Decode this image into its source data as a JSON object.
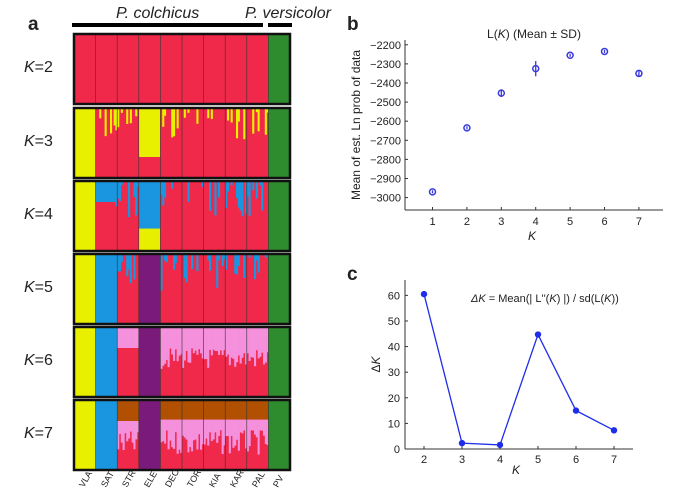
{
  "panel_a": {
    "label": "a",
    "species_left": "P. colchicus",
    "species_right": "P. versicolor",
    "populations": [
      "VLA",
      "SAT",
      "STR",
      "ELE",
      "DEC",
      "TOR",
      "KIA",
      "KAR",
      "PAL",
      "PV"
    ],
    "k_rows": [
      {
        "label": "K=2",
        "K": 2
      },
      {
        "label": "K=3",
        "K": 3
      },
      {
        "label": "K=4",
        "K": 4
      },
      {
        "label": "K=5",
        "K": 5
      },
      {
        "label": "K=6",
        "K": 6
      },
      {
        "label": "K=7",
        "K": 7
      }
    ],
    "cluster_colors": {
      "red": "#f0284a",
      "green": "#2e8b2e",
      "yellow": "#e8f000",
      "blue": "#1a96e0",
      "purple": "#7a1a7a",
      "pink": "#f490dc",
      "brown": "#b05000"
    },
    "dominant_cluster": {
      "K2": [
        "red",
        "red",
        "red",
        "red",
        "red",
        "red",
        "red",
        "red",
        "red",
        "green"
      ],
      "K3": [
        "yellow",
        "red",
        "red",
        "yellow",
        "red",
        "red",
        "red",
        "red",
        "red",
        "green"
      ],
      "K4": [
        "yellow",
        "red",
        "red",
        "blue",
        "red",
        "red",
        "red",
        "red",
        "red",
        "green"
      ],
      "K5": [
        "yellow",
        "blue",
        "red",
        "purple",
        "red",
        "red",
        "red",
        "red",
        "red",
        "green"
      ],
      "K6": [
        "yellow",
        "blue",
        "red",
        "purple",
        "red",
        "red",
        "red",
        "red",
        "red",
        "green"
      ],
      "K7": [
        "yellow",
        "blue",
        "red",
        "purple",
        "red",
        "red",
        "red",
        "red",
        "red",
        "green"
      ]
    }
  },
  "chart_data": [
    {
      "type": "scatter",
      "panel": "b",
      "title": "L(K) (Mean ± SD)",
      "xlabel": "K",
      "ylabel": "Mean of est. Ln prob of data",
      "x": [
        1,
        2,
        3,
        4,
        5,
        6,
        7
      ],
      "values": [
        -2970,
        -2635,
        -2453,
        -2325,
        -2255,
        -2235,
        -2350
      ],
      "sd": [
        8,
        8,
        20,
        40,
        8,
        8,
        15
      ],
      "xticks": [
        "1",
        "2",
        "3",
        "4",
        "5",
        "6",
        "7"
      ],
      "yticks": [
        "-2200",
        "-2300",
        "-2400",
        "-2500",
        "-2600",
        "-2700",
        "-2800",
        "-2900",
        "-3000"
      ],
      "xlim": [
        0.2,
        7.7
      ],
      "ylim": [
        -3065,
        -2175
      ],
      "color": "#3a3adc"
    },
    {
      "type": "line",
      "panel": "c",
      "title": "ΔK = Mean(|L''(K)|) / sd(L(K))",
      "xlabel": "K",
      "ylabel": "ΔK",
      "x": [
        2,
        3,
        4,
        5,
        6,
        7
      ],
      "values": [
        60.5,
        2.3,
        1.6,
        44.7,
        15,
        7.3
      ],
      "xticks": [
        "2",
        "3",
        "4",
        "5",
        "6",
        "7"
      ],
      "yticks": [
        "0",
        "10",
        "20",
        "30",
        "40",
        "50",
        "60"
      ],
      "xlim": [
        1.5,
        7.5
      ],
      "ylim": [
        0,
        66
      ],
      "color": "#1e2ee8"
    }
  ]
}
